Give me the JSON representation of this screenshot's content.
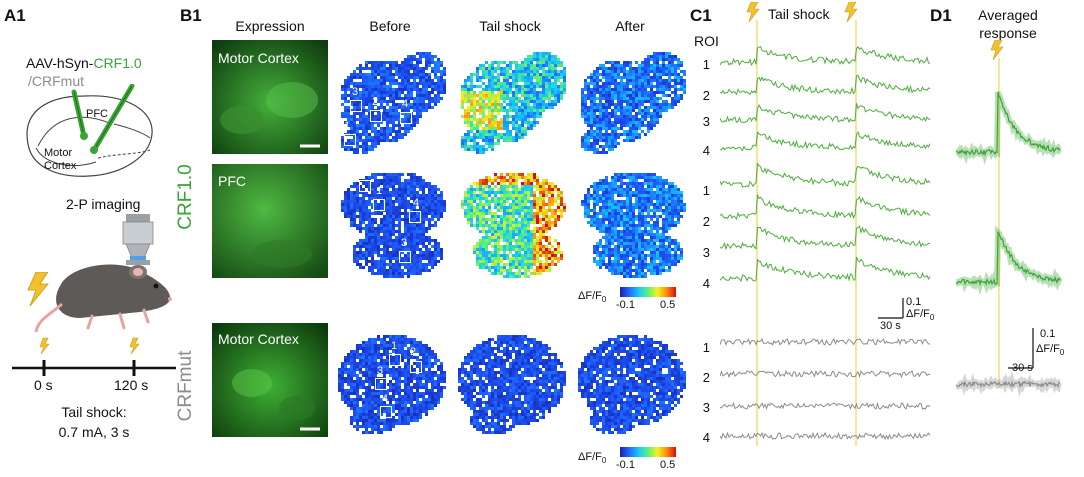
{
  "panels": {
    "a1": "A1",
    "b1": "B1",
    "c1": "C1",
    "d1": "D1"
  },
  "a1": {
    "construct_prefix": "AAV-hSyn-",
    "construct_sensor": "CRF1.0",
    "construct_mut": "/CRFmut",
    "brain_pfc": "PFC",
    "brain_motor_line1": "Motor",
    "brain_motor_line2": "Cortex",
    "imaging": "2-P imaging",
    "time_0": "0 s",
    "time_120": "120 s",
    "tail_shock_line1": "Tail shock:",
    "tail_shock_line2": "0.7 mA, 3 s"
  },
  "b1": {
    "columns": [
      "Expression",
      "Before",
      "Tail shock",
      "After"
    ],
    "group_crf": "CRF1.0",
    "group_mut": "CRFmut",
    "rows": [
      {
        "region": "Motor Cortex",
        "rois": [
          "1",
          "2",
          "3",
          "4"
        ]
      },
      {
        "region": "PFC",
        "rois": [
          "1",
          "2",
          "3",
          "4"
        ]
      },
      {
        "region": "Motor Cortex",
        "rois": [
          "1",
          "2",
          "3",
          "4"
        ]
      }
    ],
    "colorbar_label": "ΔF/F",
    "colorbar_sub": "0",
    "colorbar_min": "-0.1",
    "colorbar_max": "0.5"
  },
  "c1": {
    "title": "Tail shock",
    "roi_header": "ROI",
    "groups": [
      {
        "name": "CRF1.0 Motor Cortex",
        "rois": [
          "1",
          "2",
          "3",
          "4"
        ],
        "color": "#4caf3c"
      },
      {
        "name": "CRF1.0 PFC",
        "rois": [
          "1",
          "2",
          "3",
          "4"
        ],
        "color": "#4caf3c"
      },
      {
        "name": "CRFmut Motor Cortex",
        "rois": [
          "1",
          "2",
          "3",
          "4"
        ],
        "color": "#8c8c8c"
      }
    ],
    "scale_y": "0.1",
    "scale_y_unit": "ΔF/F",
    "scale_y_sub": "0",
    "scale_x": "30 s"
  },
  "d1": {
    "title_line1": "Averaged",
    "title_line2": "response",
    "scale_y": "0.1",
    "scale_y_unit": "ΔF/F",
    "scale_y_sub": "0",
    "scale_x": "30 s"
  },
  "colors": {
    "crf": "#3aa435",
    "mut": "#8c8c8c",
    "shock_line": "#f4e79a",
    "bolt": "#f2c12e"
  }
}
